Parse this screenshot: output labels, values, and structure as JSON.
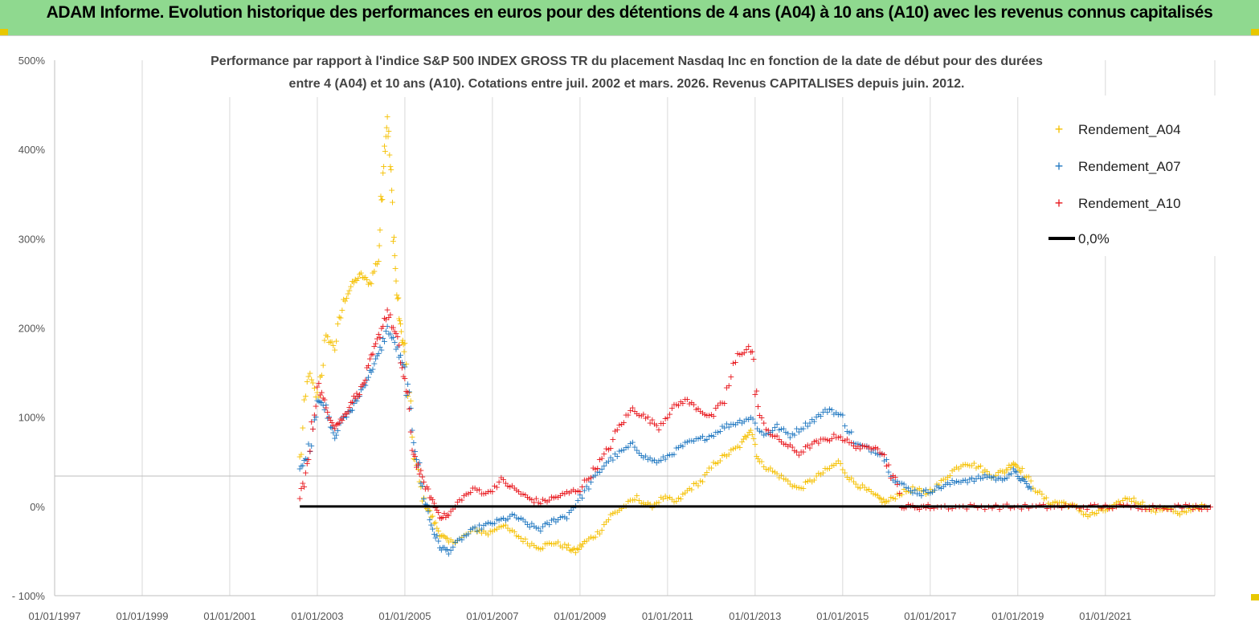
{
  "header": {
    "title": "ADAM Informe. Evolution historique des performances en euros pour des détentions de 4 ans (A04) à 10 ans (A10) avec les revenus connus capitalisés"
  },
  "colors": {
    "banner": "#8fd98f",
    "A04": "#f5c000",
    "A07": "#1f77c0",
    "A10": "#e8141a",
    "zero": "#000000"
  },
  "chart_data": {
    "type": "scatter",
    "title_line1": "Performance par rapport à l'indice S&P 500 INDEX GROSS TR  du placement Nasdaq Inc en fonction de la date de début pour des durées",
    "title_line2": "entre 4 (A04) et 10 ans (A10). Cotations entre juil. 2002 et mars. 2026. Revenus CAPITALISES depuis juin. 2012.",
    "y_ticks": [
      "500%",
      "400%",
      "300%",
      "200%",
      "100%",
      "0%",
      "- 100%"
    ],
    "y_tick_values": [
      500,
      400,
      300,
      200,
      100,
      0,
      -100
    ],
    "ylim": [
      -100,
      500
    ],
    "x_ticks": [
      "01/01/1997",
      "01/01/1999",
      "01/01/2001",
      "01/01/2003",
      "01/01/2005",
      "01/01/2007",
      "01/01/2009",
      "01/01/2011",
      "01/01/2013",
      "01/01/2015",
      "01/01/2017",
      "01/01/2019",
      "01/01/2021"
    ],
    "x_tick_years": [
      1997,
      1999,
      2001,
      2003,
      2005,
      2007,
      2009,
      2011,
      2013,
      2015,
      2017,
      2019,
      2021
    ],
    "xlim": [
      1997.0,
      2023.5
    ],
    "legend": [
      "Rendement_A04",
      "Rendement_A07",
      "Rendement_A10",
      "0,0%"
    ],
    "series": [
      {
        "name": "Rendement_A04",
        "x": [
          2002.6,
          2002.8,
          2003.0,
          2003.2,
          2003.4,
          2003.6,
          2003.8,
          2004.0,
          2004.2,
          2004.4,
          2004.5,
          2004.6,
          2004.7,
          2004.8,
          2004.9,
          2005.0,
          2005.2,
          2005.4,
          2005.6,
          2005.8,
          2006.0,
          2006.3,
          2006.6,
          2006.9,
          2007.2,
          2007.5,
          2007.8,
          2008.1,
          2008.4,
          2008.7,
          2008.9,
          2009.1,
          2009.4,
          2009.7,
          2010.0,
          2010.3,
          2010.6,
          2010.9,
          2011.2,
          2011.5,
          2011.8,
          2012.1,
          2012.4,
          2012.7,
          2012.9,
          2013.1,
          2013.4,
          2013.7,
          2014.0,
          2014.3,
          2014.6,
          2014.9,
          2015.2,
          2015.5,
          2015.8,
          2016.0,
          2016.3,
          2016.6,
          2016.9,
          2017.2,
          2017.5,
          2017.8,
          2018.1,
          2018.4,
          2018.7,
          2018.9,
          2019.1,
          2019.4,
          2019.7,
          2020.0,
          2020.3,
          2020.6,
          2020.9,
          2021.2,
          2021.5,
          2021.8,
          2022.1,
          2022.4,
          2022.7,
          2023.0,
          2023.3
        ],
        "values": [
          50,
          150,
          120,
          190,
          180,
          230,
          250,
          260,
          250,
          280,
          380,
          440,
          350,
          250,
          200,
          170,
          60,
          10,
          -10,
          -30,
          -40,
          -35,
          -25,
          -30,
          -20,
          -30,
          -40,
          -45,
          -40,
          -45,
          -50,
          -40,
          -30,
          -10,
          0,
          10,
          0,
          10,
          5,
          20,
          30,
          50,
          60,
          70,
          90,
          50,
          40,
          30,
          20,
          30,
          40,
          50,
          30,
          20,
          10,
          5,
          15,
          20,
          15,
          25,
          40,
          50,
          45,
          35,
          40,
          50,
          40,
          20,
          5,
          5,
          0,
          -10,
          -5,
          0,
          10,
          5,
          -5,
          0,
          -10,
          0,
          0
        ]
      },
      {
        "name": "Rendement_A07",
        "x": [
          2002.6,
          2002.8,
          2003.0,
          2003.2,
          2003.4,
          2003.6,
          2003.8,
          2004.0,
          2004.2,
          2004.4,
          2004.6,
          2004.8,
          2005.0,
          2005.2,
          2005.4,
          2005.6,
          2005.8,
          2006.0,
          2006.3,
          2006.6,
          2006.9,
          2007.2,
          2007.5,
          2007.8,
          2008.1,
          2008.4,
          2008.7,
          2009.0,
          2009.3,
          2009.6,
          2009.9,
          2010.2,
          2010.5,
          2010.8,
          2011.1,
          2011.4,
          2011.7,
          2012.0,
          2012.3,
          2012.6,
          2012.9,
          2013.2,
          2013.5,
          2013.8,
          2014.1,
          2014.4,
          2014.7,
          2015.0,
          2015.3,
          2015.6,
          2015.9,
          2016.2,
          2016.5,
          2016.8,
          2017.1,
          2017.4,
          2017.7,
          2018.0,
          2018.3,
          2018.6,
          2018.9,
          2019.1,
          2019.3
        ],
        "values": [
          40,
          60,
          120,
          110,
          80,
          100,
          110,
          130,
          150,
          170,
          200,
          180,
          150,
          80,
          20,
          -20,
          -45,
          -50,
          -35,
          -25,
          -20,
          -15,
          -10,
          -20,
          -25,
          -15,
          -10,
          10,
          30,
          50,
          60,
          70,
          55,
          50,
          60,
          70,
          75,
          80,
          90,
          95,
          100,
          80,
          90,
          80,
          90,
          100,
          110,
          100,
          70,
          65,
          60,
          30,
          20,
          15,
          20,
          25,
          30,
          30,
          35,
          30,
          40,
          30,
          20
        ]
      },
      {
        "name": "Rendement_A10",
        "x": [
          2002.6,
          2002.8,
          2003.0,
          2003.2,
          2003.4,
          2003.6,
          2003.8,
          2004.0,
          2004.2,
          2004.4,
          2004.6,
          2004.8,
          2005.0,
          2005.2,
          2005.4,
          2005.6,
          2005.8,
          2006.0,
          2006.3,
          2006.6,
          2006.9,
          2007.2,
          2007.5,
          2007.8,
          2008.1,
          2008.4,
          2008.7,
          2009.0,
          2009.3,
          2009.6,
          2009.9,
          2010.2,
          2010.5,
          2010.8,
          2011.1,
          2011.4,
          2011.7,
          2012.0,
          2012.3,
          2012.6,
          2012.9,
          2013.1,
          2013.4,
          2013.7,
          2014.0,
          2014.3,
          2014.6,
          2014.9,
          2015.2,
          2015.5,
          2015.8,
          2016.1,
          2016.4,
          2016.7,
          2017.0,
          2017.5,
          2018.0,
          2018.5,
          2019.0,
          2019.5,
          2020.0,
          2020.5,
          2021.0,
          2021.5,
          2022.0,
          2022.5,
          2023.0,
          2023.4
        ],
        "values": [
          10,
          50,
          140,
          110,
          90,
          100,
          120,
          130,
          160,
          190,
          220,
          190,
          140,
          60,
          30,
          10,
          -10,
          -10,
          10,
          20,
          15,
          30,
          20,
          10,
          5,
          10,
          15,
          20,
          40,
          60,
          90,
          110,
          100,
          90,
          110,
          120,
          110,
          100,
          120,
          170,
          180,
          100,
          80,
          70,
          60,
          70,
          75,
          80,
          70,
          65,
          70,
          40,
          0,
          0,
          0,
          0,
          0,
          0,
          0,
          0,
          0,
          0,
          0,
          0,
          0,
          0,
          0,
          0
        ]
      },
      {
        "name": "0,0%",
        "x": [
          2002.6,
          2023.4
        ],
        "values": [
          0,
          0
        ]
      }
    ]
  }
}
